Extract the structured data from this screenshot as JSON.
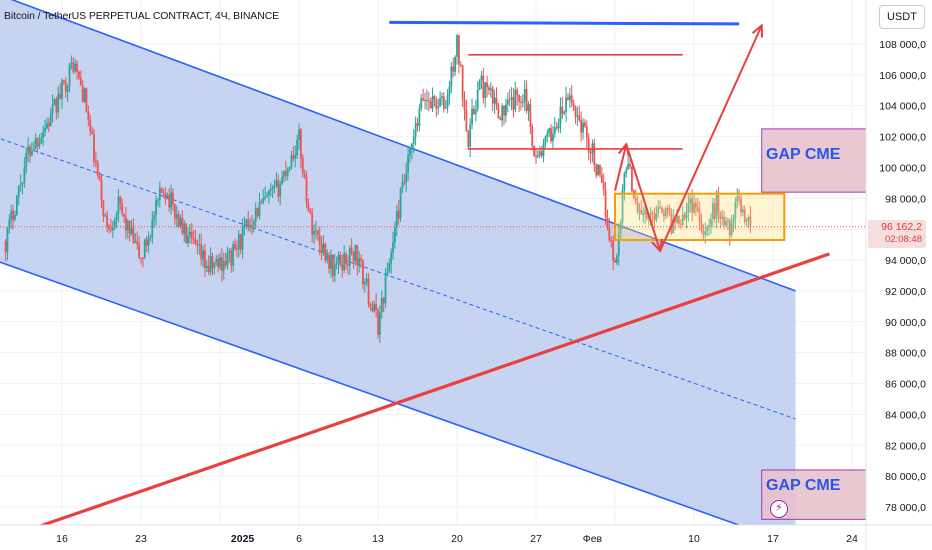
{
  "title": "Bitcoin / TetherUS PERPETUAL CONTRACT, 4Ч, BINANCE",
  "currency": "USDT",
  "last_price": "96 162,2",
  "countdown": "02:08:48",
  "annotations": {
    "gap_upper": "GAP CME",
    "gap_lower": "GAP CME"
  },
  "colors": {
    "up": "#26a69a",
    "down": "#ef5350",
    "channel_line": "#2962ff",
    "channel_fill": "#bccbef",
    "trend_red": "#e84040",
    "range_box": "#f59f00",
    "gap_box": "#e8c3cd",
    "gap_border": "#9c27b0",
    "background": "#ffffff"
  },
  "chart_data": {
    "type": "candlestick",
    "title": "Bitcoin / TetherUS PERPETUAL CONTRACT, 4Ч, BINANCE",
    "xlabel": "",
    "ylabel": "",
    "ylim": [
      76500,
      110500
    ],
    "y_ticks": [
      "108 000,0",
      "106 000,0",
      "104 000,0",
      "102 000,0",
      "100 000,0",
      "98 000,0",
      "96 000,0",
      "94 000,0",
      "92 000,0",
      "90 000,0",
      "88 000,0",
      "86 000,0",
      "84 000,0",
      "82 000,0",
      "80 000,0",
      "78 000,0"
    ],
    "y_tick_values": [
      108000,
      106000,
      104000,
      102000,
      100000,
      98000,
      96000,
      94000,
      92000,
      90000,
      88000,
      86000,
      84000,
      82000,
      80000,
      78000
    ],
    "x_ticks": [
      "16",
      "23",
      "2025",
      "6",
      "13",
      "20",
      "27",
      "Фев",
      "10",
      "17",
      "24"
    ],
    "x_tick_values": [
      "2024-12-16",
      "2024-12-23",
      "2025-01-01",
      "2025-01-06",
      "2025-01-13",
      "2025-01-20",
      "2025-01-27",
      "2025-02-01",
      "2025-02-10",
      "2025-02-17",
      "2025-02-24"
    ],
    "last_price": 96162.2,
    "series": [
      {
        "x_start": "2024-12-11",
        "x_end": "2025-02-15",
        "anchors": [
          [
            "2024-12-11",
            95200
          ],
          [
            "2024-12-13",
            101000
          ],
          [
            "2024-12-15",
            103200
          ],
          [
            "2024-12-17",
            106800
          ],
          [
            "2024-12-18",
            104500
          ],
          [
            "2024-12-19",
            100000
          ],
          [
            "2024-12-20",
            96000
          ],
          [
            "2024-12-21",
            97500
          ],
          [
            "2024-12-23",
            94000
          ],
          [
            "2024-12-25",
            98800
          ],
          [
            "2024-12-27",
            95500
          ],
          [
            "2024-12-29",
            93500
          ],
          [
            "2024-12-31",
            94200
          ],
          [
            "2025-01-02",
            97000
          ],
          [
            "2025-01-04",
            98500
          ],
          [
            "2025-01-06",
            101800
          ],
          [
            "2025-01-07",
            96500
          ],
          [
            "2025-01-09",
            93500
          ],
          [
            "2025-01-11",
            94500
          ],
          [
            "2025-01-13",
            89800
          ],
          [
            "2025-01-15",
            98000
          ],
          [
            "2025-01-17",
            104500
          ],
          [
            "2025-01-19",
            104000
          ],
          [
            "2025-01-20",
            108000
          ],
          [
            "2025-01-21",
            102000
          ],
          [
            "2025-01-22",
            105500
          ],
          [
            "2025-01-24",
            103500
          ],
          [
            "2025-01-26",
            105000
          ],
          [
            "2025-01-27",
            100500
          ],
          [
            "2025-01-28",
            101700
          ],
          [
            "2025-01-30",
            104500
          ],
          [
            "2025-01-31",
            102800
          ],
          [
            "2025-02-01",
            101000
          ],
          [
            "2025-02-02",
            98000
          ],
          [
            "2025-02-03",
            93500
          ],
          [
            "2025-02-04",
            100500
          ],
          [
            "2025-02-05",
            97500
          ],
          [
            "2025-02-06",
            96500
          ],
          [
            "2025-02-07",
            97800
          ],
          [
            "2025-02-08",
            96400
          ],
          [
            "2025-02-10",
            97800
          ],
          [
            "2025-02-11",
            95800
          ],
          [
            "2025-02-12",
            97600
          ],
          [
            "2025-02-13",
            96000
          ],
          [
            "2025-02-14",
            97800
          ],
          [
            "2025-02-15",
            96162.2
          ]
        ]
      }
    ],
    "drawings": {
      "descending_channel": {
        "upper": [
          [
            "2024-12-10",
            111300
          ],
          [
            "2025-02-19",
            92000
          ]
        ],
        "lower": [
          [
            "2024-12-10",
            94000
          ],
          [
            "2025-02-16",
            76300
          ]
        ],
        "midline": [
          [
            "2024-12-10",
            102000
          ],
          [
            "2025-02-19",
            83700
          ]
        ]
      },
      "red_trendline": [
        [
          "2024-12-13",
          76500
        ],
        [
          "2025-02-22",
          94400
        ]
      ],
      "blue_resistance": [
        [
          "2025-01-14",
          109400
        ],
        [
          "2025-02-14",
          109300
        ]
      ],
      "red_levels": [
        {
          "price": 107300,
          "from": "2025-01-21",
          "to": "2025-02-09"
        },
        {
          "price": 101200,
          "from": "2025-01-21",
          "to": "2025-02-09"
        }
      ],
      "range_box": {
        "top": 98300,
        "bottom": 95300,
        "from": "2025-02-03",
        "to": "2025-02-18"
      },
      "gap_cme_boxes": [
        {
          "top": 102500,
          "bottom": 98400,
          "from": "2025-02-16",
          "to": "2025-02-28"
        },
        {
          "top": 80400,
          "bottom": 77200,
          "from": "2025-02-16",
          "to": "2025-02-28"
        }
      ],
      "scenario_path": [
        [
          "2025-02-03",
          98500
        ],
        [
          "2025-02-04",
          101500
        ],
        [
          "2025-02-07",
          94600
        ],
        [
          "2025-02-16",
          109200
        ]
      ]
    }
  }
}
